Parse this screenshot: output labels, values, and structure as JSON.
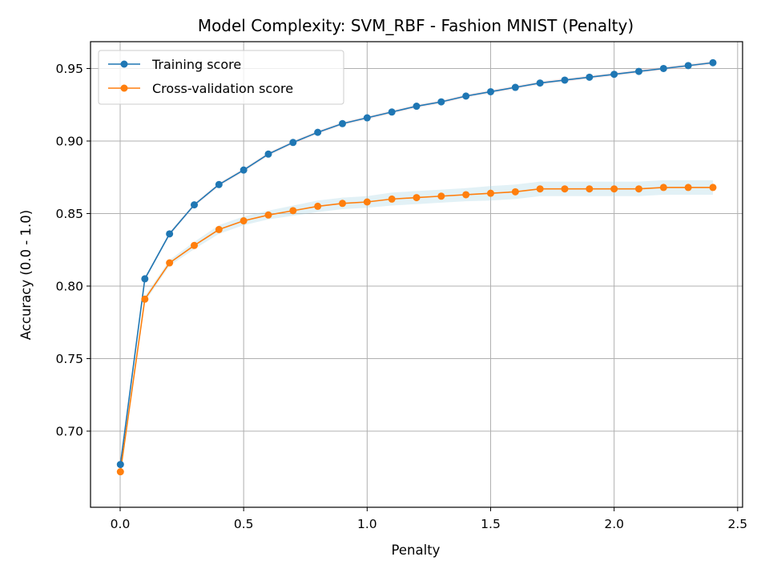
{
  "chart_data": {
    "type": "line",
    "title": "Model Complexity: SVM_RBF - Fashion MNIST (Penalty)",
    "xlabel": "Penalty",
    "ylabel": "Accuracy (0.0 - 1.0)",
    "xlim": [
      -0.12,
      2.52
    ],
    "ylim": [
      0.6475,
      0.9685
    ],
    "xticks": [
      0.0,
      0.5,
      1.0,
      1.5,
      2.0,
      2.5
    ],
    "xtick_labels": [
      "0.0",
      "0.5",
      "1.0",
      "1.5",
      "2.0",
      "2.5"
    ],
    "yticks": [
      0.7,
      0.75,
      0.8,
      0.85,
      0.9,
      0.95
    ],
    "ytick_labels": [
      "0.70",
      "0.75",
      "0.80",
      "0.85",
      "0.90",
      "0.95"
    ],
    "grid": true,
    "legend_position": "top-left",
    "x": [
      0.001,
      0.1,
      0.2,
      0.3,
      0.4,
      0.5,
      0.6,
      0.7,
      0.8,
      0.9,
      1.0,
      1.1,
      1.2,
      1.3,
      1.4,
      1.5,
      1.6,
      1.7,
      1.8,
      1.9,
      2.0,
      2.1,
      2.2,
      2.3,
      2.4
    ],
    "series": [
      {
        "name": "Training score",
        "color": "#1f77b4",
        "band_color": "#f4c2c2",
        "values": [
          0.677,
          0.805,
          0.836,
          0.856,
          0.87,
          0.88,
          0.891,
          0.899,
          0.906,
          0.912,
          0.916,
          0.92,
          0.924,
          0.927,
          0.931,
          0.934,
          0.937,
          0.94,
          0.942,
          0.944,
          0.946,
          0.948,
          0.95,
          0.952,
          0.954
        ],
        "std": [
          0.0012,
          0.0012,
          0.0012,
          0.0012,
          0.0012,
          0.0012,
          0.0012,
          0.0012,
          0.0012,
          0.0012,
          0.0012,
          0.0012,
          0.0012,
          0.0012,
          0.0012,
          0.0012,
          0.0012,
          0.0012,
          0.0012,
          0.0012,
          0.0012,
          0.0012,
          0.0012,
          0.0012,
          0.0012
        ]
      },
      {
        "name": "Cross-validation score",
        "color": "#ff7f0e",
        "band_color": "#add8e6",
        "values": [
          0.672,
          0.791,
          0.816,
          0.828,
          0.839,
          0.845,
          0.849,
          0.852,
          0.855,
          0.857,
          0.858,
          0.86,
          0.861,
          0.862,
          0.863,
          0.864,
          0.865,
          0.867,
          0.867,
          0.867,
          0.867,
          0.867,
          0.868,
          0.868,
          0.868
        ],
        "std": [
          0.002,
          0.002,
          0.002,
          0.0025,
          0.003,
          0.003,
          0.003,
          0.0035,
          0.004,
          0.004,
          0.004,
          0.0045,
          0.0045,
          0.0045,
          0.0045,
          0.005,
          0.005,
          0.005,
          0.005,
          0.005,
          0.005,
          0.005,
          0.005,
          0.005,
          0.005
        ]
      }
    ]
  }
}
